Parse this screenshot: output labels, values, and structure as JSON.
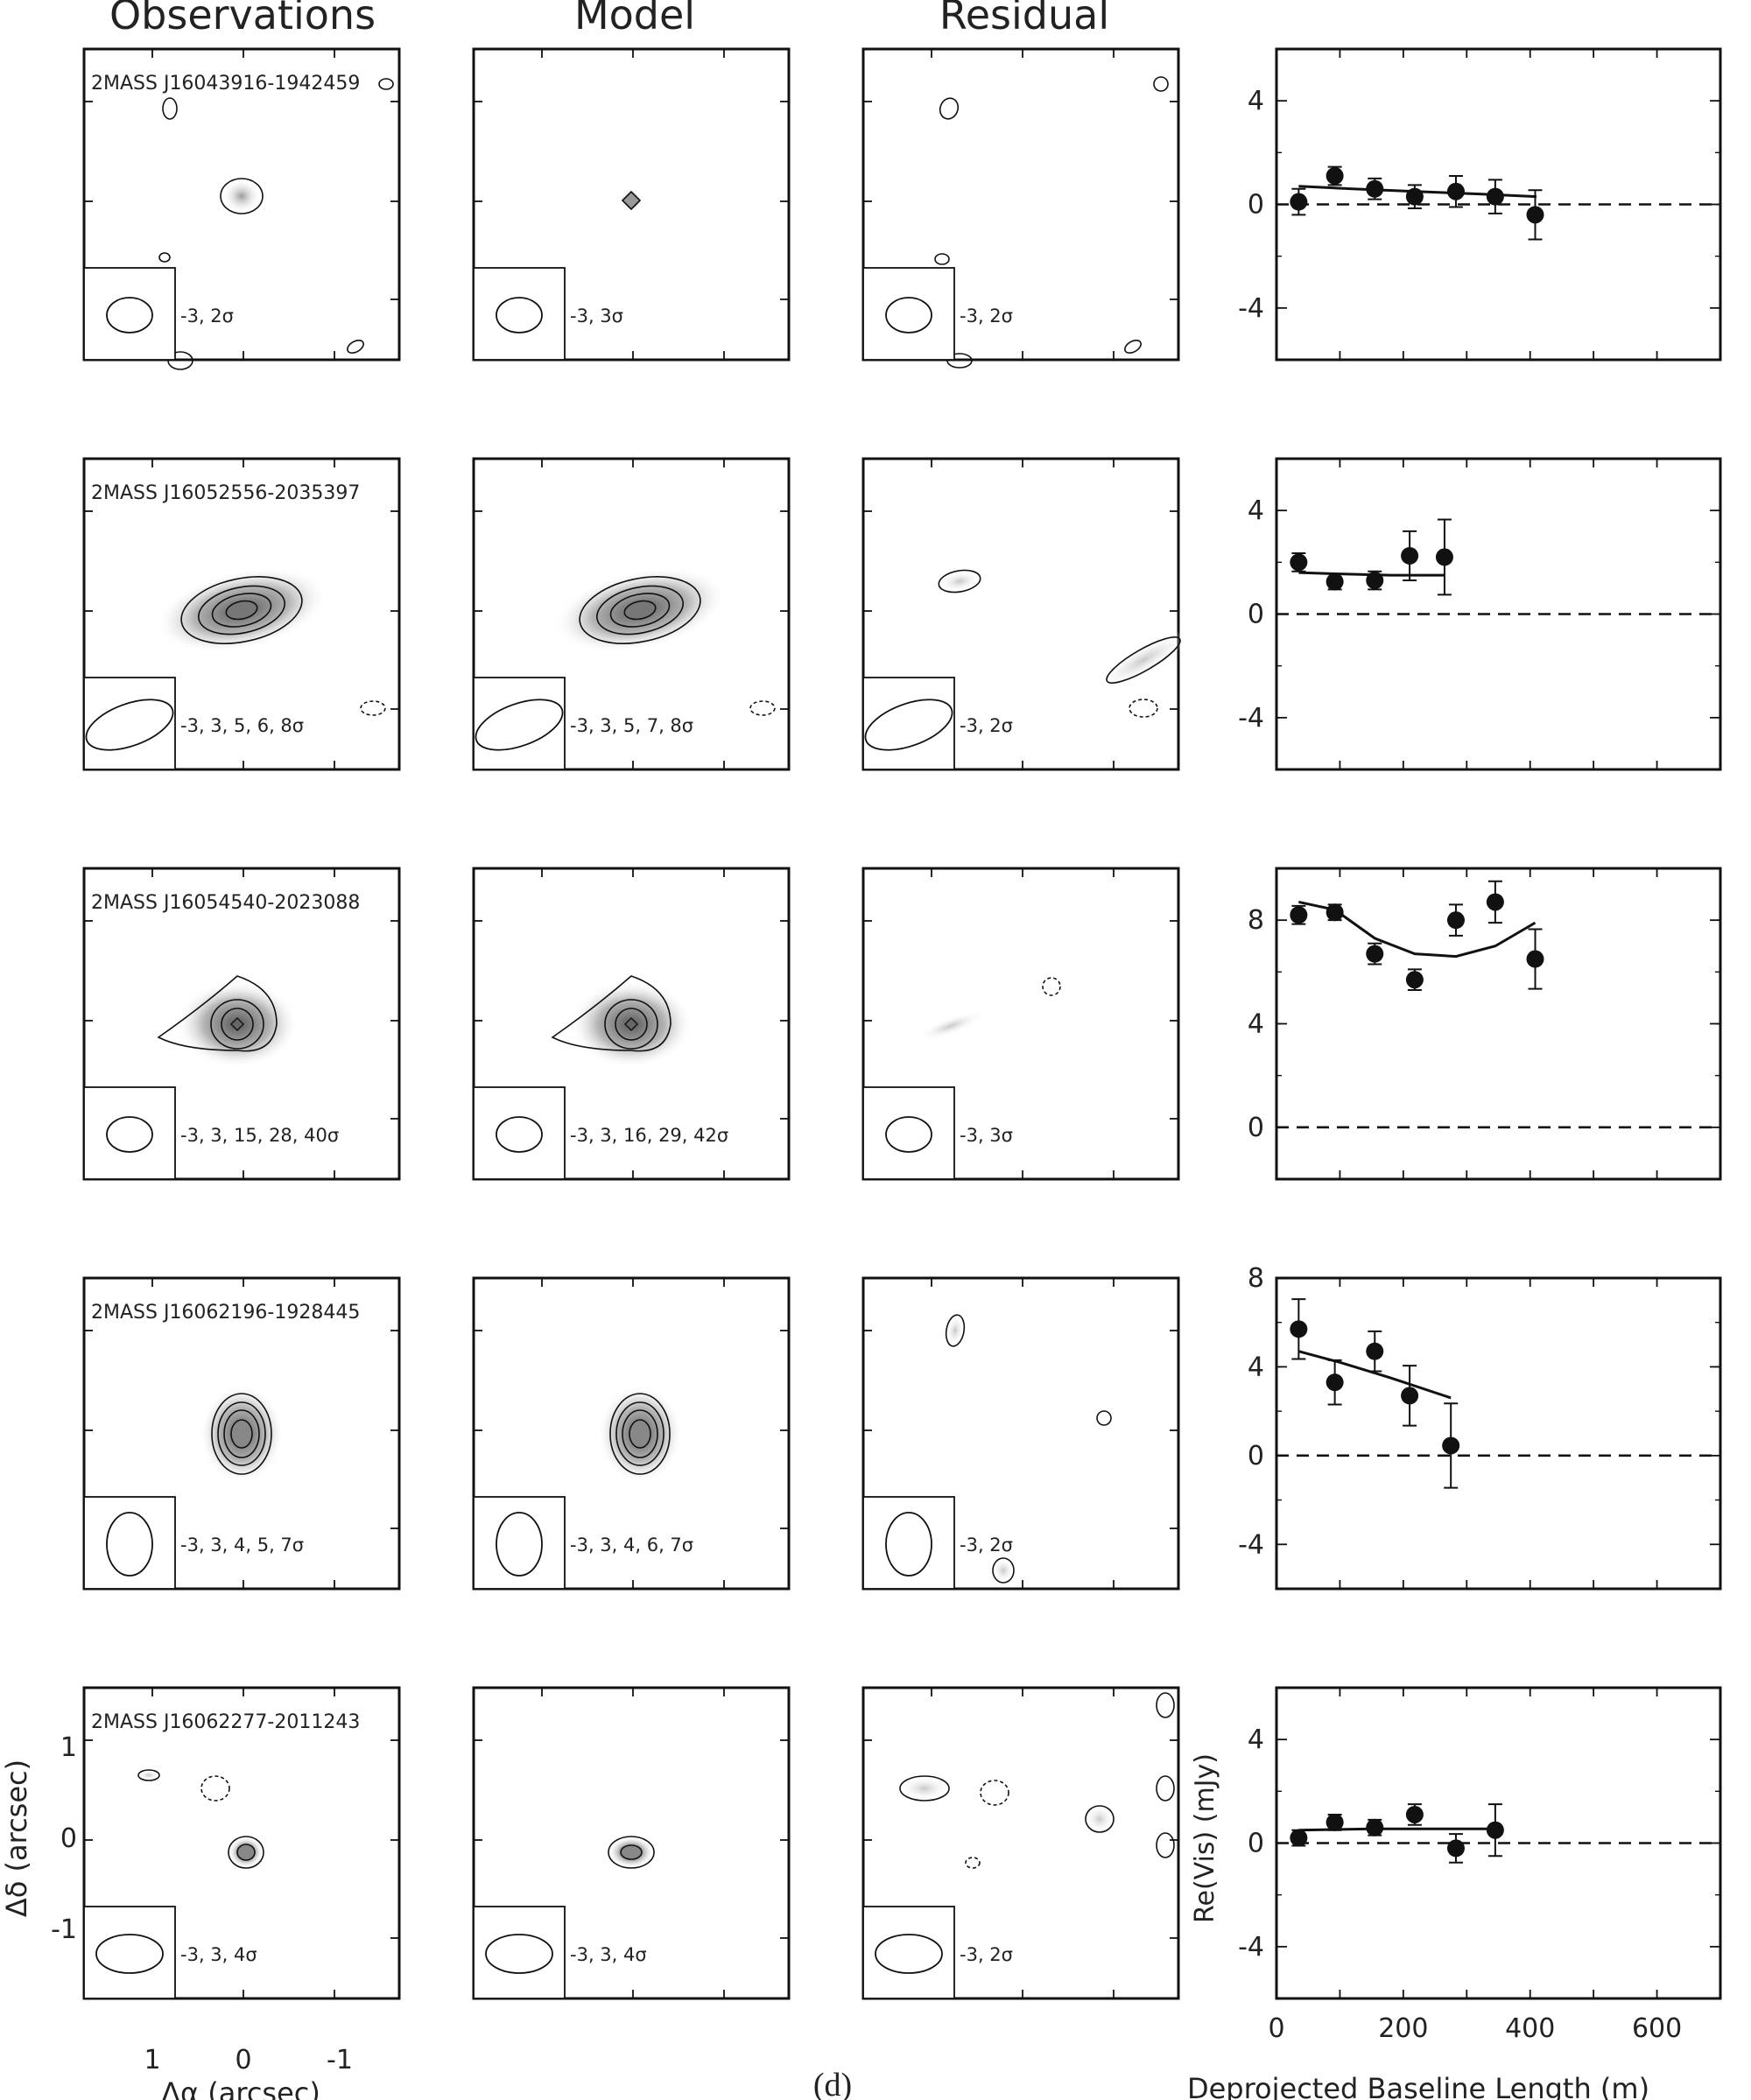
{
  "figure": {
    "panel_label": "(d)",
    "column_headers": [
      "Observations",
      "Model",
      "Residual"
    ],
    "map_axes": {
      "xlabel": "Δα (arcsec)",
      "ylabel": "Δδ (arcsec)",
      "xticks": [
        "1",
        "0",
        "-1"
      ],
      "yticks": [
        "1",
        "0",
        "-1"
      ]
    },
    "vis_axes": {
      "xlabel": "Deprojected Baseline Length (m)",
      "ylabel": "Re(Vis) (mJy)",
      "xticks": [
        "0",
        "200",
        "400",
        "600"
      ]
    }
  },
  "rows": [
    {
      "source": "2MASS J16043916-1942459",
      "obs_levels": "-3, 2σ",
      "model_levels": "-3, 3σ",
      "resid_levels": "-3, 2σ",
      "yticks": [
        "4",
        "0",
        "-4"
      ]
    },
    {
      "source": "2MASS J16052556-2035397",
      "obs_levels": "-3, 3, 5, 6, 8σ",
      "model_levels": "-3, 3, 5, 7, 8σ",
      "resid_levels": "-3, 2σ",
      "yticks": [
        "4",
        "0",
        "-4"
      ]
    },
    {
      "source": "2MASS J16054540-2023088",
      "obs_levels": "-3, 3, 15, 28, 40σ",
      "model_levels": "-3, 3, 16, 29, 42σ",
      "resid_levels": "-3, 3σ",
      "yticks": [
        "8",
        "4",
        "0"
      ]
    },
    {
      "source": "2MASS J16062196-1928445",
      "obs_levels": "-3, 3, 4, 5, 7σ",
      "model_levels": "-3, 3, 4, 6, 7σ",
      "resid_levels": "-3, 2σ",
      "yticks": [
        "8",
        "4",
        "0",
        "-4"
      ]
    },
    {
      "source": "2MASS J16062277-2011243",
      "obs_levels": "-3, 3, 4σ",
      "model_levels": "-3, 3, 4σ",
      "resid_levels": "-3, 2σ",
      "yticks": [
        "4",
        "0",
        "-4"
      ]
    }
  ],
  "chart_data": [
    {
      "type": "scatter",
      "source": "2MASS J16043916-1942459",
      "xlim": [
        0,
        700
      ],
      "ylim": [
        -6,
        6
      ],
      "points": [
        {
          "x": 35,
          "y": 0.1,
          "err": 0.5
        },
        {
          "x": 92,
          "y": 1.1,
          "err": 0.35
        },
        {
          "x": 155,
          "y": 0.6,
          "err": 0.4
        },
        {
          "x": 218,
          "y": 0.3,
          "err": 0.45
        },
        {
          "x": 283,
          "y": 0.5,
          "err": 0.6
        },
        {
          "x": 345,
          "y": 0.3,
          "err": 0.65
        },
        {
          "x": 408,
          "y": -0.4,
          "err": 0.95
        }
      ],
      "model": [
        [
          35,
          0.7
        ],
        [
          120,
          0.6
        ],
        [
          220,
          0.5
        ],
        [
          320,
          0.4
        ],
        [
          410,
          0.3
        ]
      ]
    },
    {
      "type": "scatter",
      "source": "2MASS J16052556-2035397",
      "xlim": [
        0,
        700
      ],
      "ylim": [
        -6,
        6
      ],
      "points": [
        {
          "x": 35,
          "y": 2.0,
          "err": 0.35
        },
        {
          "x": 92,
          "y": 1.25,
          "err": 0.3
        },
        {
          "x": 155,
          "y": 1.3,
          "err": 0.35
        },
        {
          "x": 210,
          "y": 2.25,
          "err": 0.95
        },
        {
          "x": 265,
          "y": 2.2,
          "err": 1.45
        }
      ],
      "model": [
        [
          35,
          1.6
        ],
        [
          100,
          1.55
        ],
        [
          180,
          1.5
        ],
        [
          265,
          1.5
        ]
      ]
    },
    {
      "type": "scatter",
      "source": "2MASS J16054540-2023088",
      "xlim": [
        0,
        700
      ],
      "ylim": [
        -2,
        10
      ],
      "points": [
        {
          "x": 35,
          "y": 8.2,
          "err": 0.35
        },
        {
          "x": 92,
          "y": 8.3,
          "err": 0.3
        },
        {
          "x": 155,
          "y": 6.7,
          "err": 0.4
        },
        {
          "x": 218,
          "y": 5.7,
          "err": 0.4
        },
        {
          "x": 283,
          "y": 8.0,
          "err": 0.6
        },
        {
          "x": 345,
          "y": 8.7,
          "err": 0.8
        },
        {
          "x": 408,
          "y": 6.5,
          "err": 1.15
        }
      ],
      "model": [
        [
          35,
          8.7
        ],
        [
          92,
          8.4
        ],
        [
          155,
          7.3
        ],
        [
          218,
          6.7
        ],
        [
          283,
          6.6
        ],
        [
          345,
          7.0
        ],
        [
          408,
          7.9
        ]
      ]
    },
    {
      "type": "scatter",
      "source": "2MASS J16062196-1928445",
      "xlim": [
        0,
        700
      ],
      "ylim": [
        -6,
        8
      ],
      "points": [
        {
          "x": 35,
          "y": 5.7,
          "err": 1.35
        },
        {
          "x": 92,
          "y": 3.3,
          "err": 1.0
        },
        {
          "x": 155,
          "y": 4.7,
          "err": 0.9
        },
        {
          "x": 210,
          "y": 2.7,
          "err": 1.35
        },
        {
          "x": 275,
          "y": 0.45,
          "err": 1.9
        }
      ],
      "model": [
        [
          35,
          4.7
        ],
        [
          100,
          4.2
        ],
        [
          180,
          3.5
        ],
        [
          275,
          2.6
        ]
      ]
    },
    {
      "type": "scatter",
      "source": "2MASS J16062277-2011243",
      "xlim": [
        0,
        700
      ],
      "ylim": [
        -6,
        6
      ],
      "points": [
        {
          "x": 35,
          "y": 0.2,
          "err": 0.3
        },
        {
          "x": 92,
          "y": 0.8,
          "err": 0.3
        },
        {
          "x": 155,
          "y": 0.6,
          "err": 0.3
        },
        {
          "x": 218,
          "y": 1.1,
          "err": 0.4
        },
        {
          "x": 283,
          "y": -0.2,
          "err": 0.55
        },
        {
          "x": 345,
          "y": 0.5,
          "err": 1.0
        }
      ],
      "model": [
        [
          35,
          0.5
        ],
        [
          150,
          0.55
        ],
        [
          260,
          0.55
        ],
        [
          345,
          0.55
        ]
      ]
    }
  ]
}
